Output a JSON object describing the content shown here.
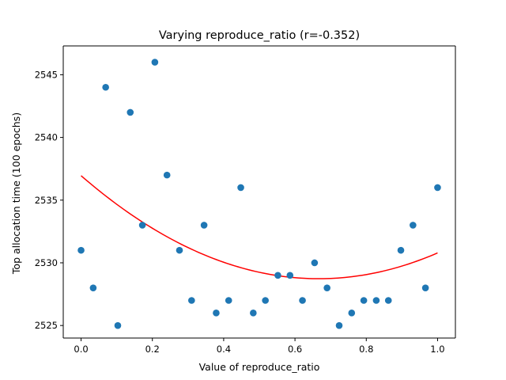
{
  "chart_data": {
    "type": "scatter",
    "title": "Varying reproduce_ratio (r=-0.352)",
    "xlabel": "Value of reproduce_ratio",
    "ylabel": "Top allocation time (100 epochs)",
    "xlim": [
      -0.05,
      1.05
    ],
    "ylim": [
      2524,
      2547.3
    ],
    "x_ticks": [
      0.0,
      0.2,
      0.4,
      0.6,
      0.8,
      1.0
    ],
    "x_tick_labels": [
      "0.0",
      "0.2",
      "0.4",
      "0.6",
      "0.8",
      "1.0"
    ],
    "y_ticks": [
      2525,
      2530,
      2535,
      2540,
      2545
    ],
    "y_tick_labels": [
      "2525",
      "2530",
      "2535",
      "2540",
      "2545"
    ],
    "grid": false,
    "legend": "none",
    "series": [
      {
        "type": "scatter",
        "color": "#1f77b4",
        "points": [
          {
            "x": 0.0,
            "y": 2531
          },
          {
            "x": 0.034,
            "y": 2528
          },
          {
            "x": 0.069,
            "y": 2544
          },
          {
            "x": 0.103,
            "y": 2525
          },
          {
            "x": 0.138,
            "y": 2542
          },
          {
            "x": 0.172,
            "y": 2533
          },
          {
            "x": 0.207,
            "y": 2546
          },
          {
            "x": 0.241,
            "y": 2537
          },
          {
            "x": 0.276,
            "y": 2531
          },
          {
            "x": 0.31,
            "y": 2527
          },
          {
            "x": 0.345,
            "y": 2533
          },
          {
            "x": 0.379,
            "y": 2526
          },
          {
            "x": 0.414,
            "y": 2527
          },
          {
            "x": 0.448,
            "y": 2536
          },
          {
            "x": 0.483,
            "y": 2526
          },
          {
            "x": 0.517,
            "y": 2527
          },
          {
            "x": 0.552,
            "y": 2529
          },
          {
            "x": 0.586,
            "y": 2529
          },
          {
            "x": 0.621,
            "y": 2527
          },
          {
            "x": 0.655,
            "y": 2530
          },
          {
            "x": 0.69,
            "y": 2528
          },
          {
            "x": 0.724,
            "y": 2525
          },
          {
            "x": 0.759,
            "y": 2526
          },
          {
            "x": 0.793,
            "y": 2527
          },
          {
            "x": 0.828,
            "y": 2527
          },
          {
            "x": 0.862,
            "y": 2527
          },
          {
            "x": 0.897,
            "y": 2531
          },
          {
            "x": 0.931,
            "y": 2533
          },
          {
            "x": 0.966,
            "y": 2528
          },
          {
            "x": 1.0,
            "y": 2536
          }
        ]
      },
      {
        "type": "line",
        "color": "#ff0000",
        "fit": "quadratic",
        "coefficients": {
          "a": 18.5,
          "b": -24.66,
          "c": 2536.95
        },
        "x_range": [
          0,
          1
        ]
      }
    ]
  }
}
